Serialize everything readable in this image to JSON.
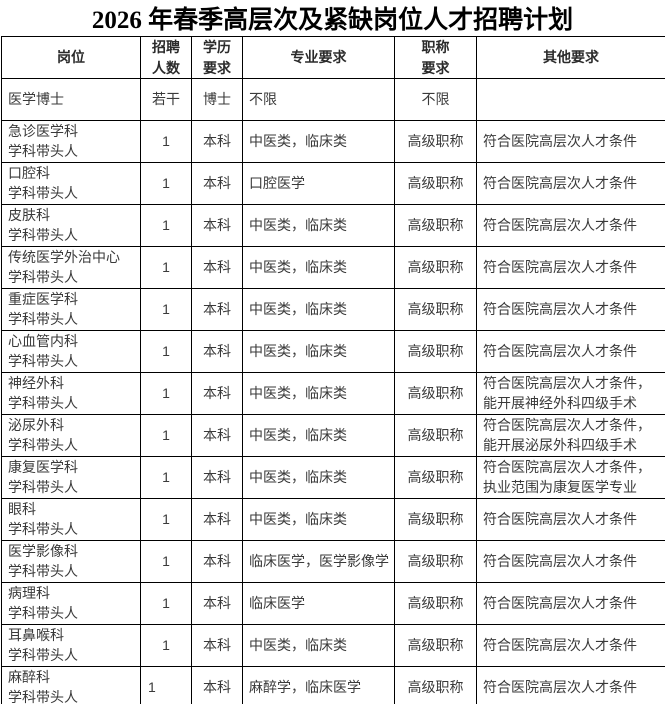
{
  "title": "2026 年春季高层次及紧缺岗位人才招聘计划",
  "colors": {
    "background": "#ffffff",
    "border": "#000000",
    "title_text": "#000000",
    "body_text": "#3a3a3a"
  },
  "table": {
    "columns": [
      {
        "key": "position",
        "label": "岗位"
      },
      {
        "key": "headcount",
        "label": "招聘\n人数"
      },
      {
        "key": "education",
        "label": "学历\n要求"
      },
      {
        "key": "major",
        "label": "专业要求"
      },
      {
        "key": "title-req",
        "label": "职称\n要求"
      },
      {
        "key": "other-req",
        "label": "其他要求"
      }
    ],
    "rows": [
      {
        "cells": [
          "医学博士",
          "若干",
          "博士",
          "不限",
          "不限",
          ""
        ]
      },
      {
        "cells": [
          "急诊医学科\n学科带头人",
          "1",
          "本科",
          "中医类，临床类",
          "高级职称",
          "符合医院高层次人才条件"
        ]
      },
      {
        "cells": [
          "口腔科\n学科带头人",
          "1",
          "本科",
          "口腔医学",
          "高级职称",
          "符合医院高层次人才条件"
        ]
      },
      {
        "cells": [
          "皮肤科\n学科带头人",
          "1",
          "本科",
          "中医类，临床类",
          "高级职称",
          "符合医院高层次人才条件"
        ]
      },
      {
        "cells": [
          "传统医学外治中心\n学科带头人",
          "1",
          "本科",
          "中医类，临床类",
          "高级职称",
          "符合医院高层次人才条件"
        ]
      },
      {
        "cells": [
          "重症医学科\n学科带头人",
          "1",
          "本科",
          "中医类，临床类",
          "高级职称",
          "符合医院高层次人才条件"
        ]
      },
      {
        "cells": [
          "心血管内科\n学科带头人",
          "1",
          "本科",
          "中医类，临床类",
          "高级职称",
          "符合医院高层次人才条件"
        ]
      },
      {
        "cells": [
          "神经外科\n学科带头人",
          "1",
          "本科",
          "中医类，临床类",
          "高级职称",
          "符合医院高层次人才条件，\n能开展神经外科四级手术"
        ]
      },
      {
        "cells": [
          "泌尿外科\n学科带头人",
          "1",
          "本科",
          "中医类，临床类",
          "高级职称",
          "符合医院高层次人才条件，\n能开展泌尿外科四级手术"
        ]
      },
      {
        "cells": [
          "康复医学科\n学科带头人",
          "1",
          "本科",
          "中医类，临床类",
          "高级职称",
          "符合医院高层次人才条件，\n执业范围为康复医学专业"
        ]
      },
      {
        "cells": [
          "眼科\n学科带头人",
          "1",
          "本科",
          "中医类，临床类",
          "高级职称",
          "符合医院高层次人才条件"
        ]
      },
      {
        "cells": [
          "医学影像科\n学科带头人",
          "1",
          "本科",
          "临床医学，医学影像学",
          "高级职称",
          "符合医院高层次人才条件"
        ]
      },
      {
        "cells": [
          "病理科\n学科带头人",
          "1",
          "本科",
          "临床医学",
          "高级职称",
          "符合医院高层次人才条件"
        ]
      },
      {
        "cells": [
          "耳鼻喉科\n学科带头人",
          "1",
          "本科",
          "中医类，临床类",
          "高级职称",
          "符合医院高层次人才条件"
        ]
      },
      {
        "cells": [
          "麻醉科\n学科带头人",
          "1",
          "本科",
          "麻醉学，临床医学",
          "高级职称",
          "符合医院高层次人才条件"
        ],
        "align_overrides": {
          "1": "left"
        }
      },
      {
        "cells": [
          "",
          "",
          "",
          "",
          "",
          ""
        ],
        "partial": true
      }
    ]
  }
}
